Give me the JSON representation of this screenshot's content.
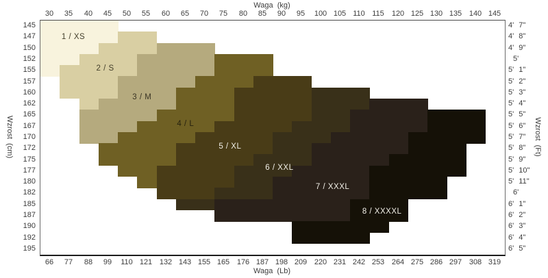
{
  "chart_data": {
    "type": "heatmap",
    "description": "Clothing size chart: size regions plotted over weight (x) and height (y)",
    "x_axis": {
      "top_title": "Waga  (kg)",
      "bottom_title": "Waga  (Lb)",
      "ticks_top": [
        "30",
        "35",
        "40",
        "45",
        "50",
        "55",
        "60",
        "65",
        "70",
        "75",
        "80",
        "85",
        "90",
        "95",
        "100",
        "105",
        "110",
        "115",
        "120",
        "125",
        "130",
        "135",
        "140",
        "145"
      ],
      "ticks_bottom": [
        "66",
        "77",
        "88",
        "99",
        "110",
        "121",
        "132",
        "143",
        "155",
        "165",
        "176",
        "187",
        "198",
        "209",
        "220",
        "231",
        "242",
        "253",
        "264",
        "275",
        "286",
        "297",
        "308",
        "319"
      ]
    },
    "y_axis": {
      "left_title": "Wzrost  (cm)",
      "right_title": "Wzrost  (Ft)",
      "ticks_left": [
        "145",
        "147",
        "150",
        "152",
        "155",
        "157",
        "160",
        "162",
        "165",
        "167",
        "170",
        "172",
        "175",
        "177",
        "180",
        "182",
        "185",
        "187",
        "190",
        "192",
        "195"
      ],
      "ticks_right": [
        "4' 7\"",
        "4' 8\"",
        "4' 9\"",
        "5'",
        "5' 1\"",
        "5' 2\"",
        "5' 3\"",
        "5' 4\"",
        "5' 5\"",
        "5' 6\"",
        "5' 7\"",
        "5' 8\"",
        "5' 9\"",
        "5' 10\"",
        "5' 11\"",
        "6'",
        "6' 1\"",
        "6' 2\"",
        "6' 3\"",
        "6' 4\"",
        "6' 5\""
      ],
      "grid": false
    },
    "legend_position": "labels-inside-regions",
    "sizes": [
      {
        "id": 1,
        "label": "1  /  XS",
        "color": "#f8f3dd",
        "text_color": "#45402c",
        "label_col": 1.7,
        "label_row": 1.45
      },
      {
        "id": 2,
        "label": "2  /  S",
        "color": "#d9cfa3",
        "text_color": "#45402c",
        "label_col": 3.35,
        "label_row": 4.3
      },
      {
        "id": 3,
        "label": "3  /  M",
        "color": "#b5aa7e",
        "text_color": "#3a3524",
        "label_col": 5.25,
        "label_row": 6.85
      },
      {
        "id": 4,
        "label": "4  /  L",
        "color": "#6f6024",
        "text_color": "#26210e",
        "label_col": 7.5,
        "label_row": 9.3
      },
      {
        "id": 5,
        "label": "5  /  XL",
        "color": "#493c17",
        "text_color": "#f2f0e8",
        "label_col": 9.8,
        "label_row": 11.3
      },
      {
        "id": 6,
        "label": "6  /  XXL",
        "color": "#393019",
        "text_color": "#f2f0e8",
        "label_col": 12.35,
        "label_row": 13.2
      },
      {
        "id": 7,
        "label": "7  /  XXXL",
        "color": "#2a211a",
        "text_color": "#f2f0e8",
        "label_col": 15.1,
        "label_row": 14.95
      },
      {
        "id": 8,
        "label": "8  /  XXXXL",
        "color": "#151107",
        "text_color": "#f2f0e8",
        "label_col": 17.65,
        "label_row": 17.15
      }
    ],
    "rows": [
      {
        "height_cm": "145",
        "segments": [
          {
            "size": 1,
            "from": 0,
            "to": 3
          }
        ]
      },
      {
        "height_cm": "147",
        "segments": [
          {
            "size": 1,
            "from": 0,
            "to": 3
          },
          {
            "size": 2,
            "from": 4,
            "to": 5
          }
        ]
      },
      {
        "height_cm": "150",
        "segments": [
          {
            "size": 1,
            "from": 0,
            "to": 2
          },
          {
            "size": 2,
            "from": 3,
            "to": 5
          },
          {
            "size": 3,
            "from": 6,
            "to": 8
          }
        ]
      },
      {
        "height_cm": "152",
        "segments": [
          {
            "size": 1,
            "from": 0,
            "to": 1
          },
          {
            "size": 2,
            "from": 2,
            "to": 4
          },
          {
            "size": 3,
            "from": 5,
            "to": 8
          },
          {
            "size": 4,
            "from": 9,
            "to": 11
          }
        ]
      },
      {
        "height_cm": "155",
        "segments": [
          {
            "size": 1,
            "from": 0,
            "to": 0
          },
          {
            "size": 2,
            "from": 1,
            "to": 4
          },
          {
            "size": 3,
            "from": 5,
            "to": 8
          },
          {
            "size": 4,
            "from": 9,
            "to": 11
          }
        ]
      },
      {
        "height_cm": "157",
        "segments": [
          {
            "size": 2,
            "from": 1,
            "to": 3
          },
          {
            "size": 3,
            "from": 4,
            "to": 7
          },
          {
            "size": 4,
            "from": 8,
            "to": 10
          },
          {
            "size": 5,
            "from": 11,
            "to": 13
          }
        ]
      },
      {
        "height_cm": "160",
        "segments": [
          {
            "size": 2,
            "from": 1,
            "to": 3
          },
          {
            "size": 3,
            "from": 4,
            "to": 6
          },
          {
            "size": 4,
            "from": 7,
            "to": 9
          },
          {
            "size": 5,
            "from": 10,
            "to": 13
          },
          {
            "size": 6,
            "from": 14,
            "to": 16
          }
        ]
      },
      {
        "height_cm": "162",
        "segments": [
          {
            "size": 2,
            "from": 2,
            "to": 2
          },
          {
            "size": 3,
            "from": 3,
            "to": 6
          },
          {
            "size": 4,
            "from": 7,
            "to": 9
          },
          {
            "size": 5,
            "from": 10,
            "to": 13
          },
          {
            "size": 6,
            "from": 14,
            "to": 16
          },
          {
            "size": 7,
            "from": 17,
            "to": 19
          }
        ]
      },
      {
        "height_cm": "165",
        "segments": [
          {
            "size": 3,
            "from": 2,
            "to": 5
          },
          {
            "size": 4,
            "from": 6,
            "to": 9
          },
          {
            "size": 5,
            "from": 10,
            "to": 13
          },
          {
            "size": 6,
            "from": 14,
            "to": 15
          },
          {
            "size": 7,
            "from": 16,
            "to": 19
          },
          {
            "size": 8,
            "from": 20,
            "to": 22
          }
        ]
      },
      {
        "height_cm": "167",
        "segments": [
          {
            "size": 3,
            "from": 2,
            "to": 4
          },
          {
            "size": 4,
            "from": 5,
            "to": 8
          },
          {
            "size": 5,
            "from": 9,
            "to": 12
          },
          {
            "size": 6,
            "from": 13,
            "to": 15
          },
          {
            "size": 7,
            "from": 16,
            "to": 19
          },
          {
            "size": 8,
            "from": 20,
            "to": 22
          }
        ]
      },
      {
        "height_cm": "170",
        "segments": [
          {
            "size": 3,
            "from": 2,
            "to": 3
          },
          {
            "size": 4,
            "from": 4,
            "to": 7
          },
          {
            "size": 5,
            "from": 8,
            "to": 11
          },
          {
            "size": 6,
            "from": 12,
            "to": 14
          },
          {
            "size": 7,
            "from": 15,
            "to": 18
          },
          {
            "size": 8,
            "from": 19,
            "to": 22
          }
        ]
      },
      {
        "height_cm": "172",
        "segments": [
          {
            "size": 4,
            "from": 3,
            "to": 6
          },
          {
            "size": 5,
            "from": 7,
            "to": 11
          },
          {
            "size": 6,
            "from": 12,
            "to": 13
          },
          {
            "size": 7,
            "from": 14,
            "to": 18
          },
          {
            "size": 8,
            "from": 19,
            "to": 21
          }
        ]
      },
      {
        "height_cm": "175",
        "segments": [
          {
            "size": 4,
            "from": 3,
            "to": 6
          },
          {
            "size": 5,
            "from": 7,
            "to": 10
          },
          {
            "size": 6,
            "from": 11,
            "to": 13
          },
          {
            "size": 7,
            "from": 14,
            "to": 17
          },
          {
            "size": 8,
            "from": 18,
            "to": 21
          }
        ]
      },
      {
        "height_cm": "177",
        "segments": [
          {
            "size": 4,
            "from": 4,
            "to": 5
          },
          {
            "size": 5,
            "from": 6,
            "to": 9
          },
          {
            "size": 6,
            "from": 10,
            "to": 12
          },
          {
            "size": 7,
            "from": 13,
            "to": 16
          },
          {
            "size": 8,
            "from": 17,
            "to": 21
          }
        ]
      },
      {
        "height_cm": "180",
        "segments": [
          {
            "size": 4,
            "from": 5,
            "to": 5
          },
          {
            "size": 5,
            "from": 6,
            "to": 9
          },
          {
            "size": 6,
            "from": 10,
            "to": 11
          },
          {
            "size": 7,
            "from": 12,
            "to": 16
          },
          {
            "size": 8,
            "from": 17,
            "to": 20
          }
        ]
      },
      {
        "height_cm": "182",
        "segments": [
          {
            "size": 5,
            "from": 6,
            "to": 8
          },
          {
            "size": 6,
            "from": 9,
            "to": 11
          },
          {
            "size": 7,
            "from": 12,
            "to": 16
          },
          {
            "size": 8,
            "from": 17,
            "to": 20
          }
        ]
      },
      {
        "height_cm": "185",
        "segments": [
          {
            "size": 6,
            "from": 7,
            "to": 8
          },
          {
            "size": 7,
            "from": 9,
            "to": 15
          },
          {
            "size": 8,
            "from": 16,
            "to": 18
          }
        ]
      },
      {
        "height_cm": "187",
        "segments": [
          {
            "size": 7,
            "from": 9,
            "to": 15
          },
          {
            "size": 8,
            "from": 16,
            "to": 18
          }
        ]
      },
      {
        "height_cm": "190",
        "segments": [
          {
            "size": 8,
            "from": 13,
            "to": 17
          }
        ]
      },
      {
        "height_cm": "192",
        "segments": [
          {
            "size": 8,
            "from": 13,
            "to": 16
          }
        ]
      },
      {
        "height_cm": "195",
        "segments": []
      }
    ]
  }
}
